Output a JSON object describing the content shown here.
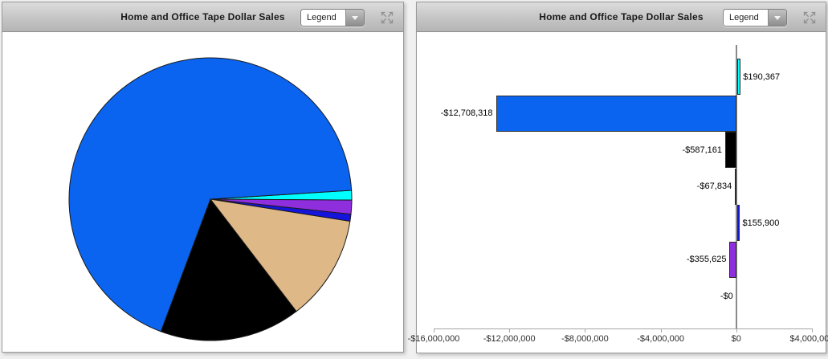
{
  "page": {
    "background": "#f0f0f0"
  },
  "panels": {
    "pie": {
      "title": "Home and Office Tape Dollar Sales",
      "legend_button_label": "Legend"
    },
    "bar": {
      "title": "Home and Office Tape Dollar Sales",
      "legend_button_label": "Legend"
    }
  },
  "colors": {
    "blue": "#0A64F0",
    "cyan": "#00FFFF",
    "black": "#000000",
    "tan": "#DEB887",
    "royal_blue": "#1414DC",
    "purple": "#8E2EDD"
  },
  "chart_data": [
    {
      "type": "pie",
      "title": "Home and Office Tape Dollar Sales",
      "legend": "collapsed (Legend dropdown)",
      "start_angle_deg": 86.4,
      "direction": "clockwise",
      "slices": [
        {
          "name": "cyan-slice",
          "color": "#00FFFF",
          "fraction": 0.011
        },
        {
          "name": "purple-slice",
          "color": "#8E2EDD",
          "fraction": 0.016
        },
        {
          "name": "royal-blue-slice",
          "color": "#1414DC",
          "fraction": 0.008
        },
        {
          "name": "tan-slice",
          "color": "#DEB887",
          "fraction": 0.121
        },
        {
          "name": "black-slice",
          "color": "#000000",
          "fraction": 0.161
        },
        {
          "name": "blue-slice",
          "color": "#0A64F0",
          "fraction": 0.683
        }
      ]
    },
    {
      "type": "bar",
      "orientation": "horizontal",
      "title": "Home and Office Tape Dollar Sales",
      "values": [
        190367,
        -12708318,
        -587161,
        -67834,
        155900,
        -355625,
        0
      ],
      "labels": [
        "$190,367",
        "-$12,708,318",
        "-$587,161",
        "-$67,834",
        "$155,900",
        "-$355,625",
        "-$0"
      ],
      "colors": [
        "#00FFFF",
        "#0A64F0",
        "#000000",
        "#DEB887",
        "#1414DC",
        "#8E2EDD",
        "#9a9a9a"
      ],
      "xlim": [
        -16000000,
        4000000
      ],
      "x_ticks": [
        -16000000,
        -12000000,
        -8000000,
        -4000000,
        0,
        4000000
      ],
      "x_tick_labels": [
        "-$16,000,000",
        "-$12,000,000",
        "-$8,000,000",
        "-$4,000,000",
        "$0",
        "$4,000,000"
      ],
      "grid": false,
      "zero_line": true
    }
  ]
}
